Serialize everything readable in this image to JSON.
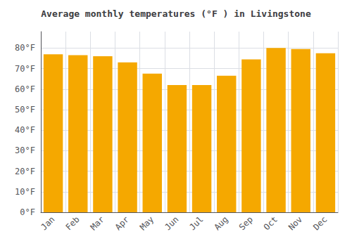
{
  "chart_data": {
    "type": "bar",
    "title": "Average monthly temperatures (°F ) in Livingstone",
    "categories": [
      "Jan",
      "Feb",
      "Mar",
      "Apr",
      "May",
      "Jun",
      "Jul",
      "Aug",
      "Sep",
      "Oct",
      "Nov",
      "Dec"
    ],
    "values": [
      77,
      76.5,
      76,
      73,
      67.5,
      62,
      62,
      66.5,
      74.5,
      80,
      79.5,
      77.5
    ],
    "color": "#F5A800",
    "ylim": [
      0,
      88
    ],
    "yticks": [
      {
        "value": 0,
        "label": "0°F"
      },
      {
        "value": 10,
        "label": "10°F"
      },
      {
        "value": 20,
        "label": "20°F"
      },
      {
        "value": 30,
        "label": "30°F"
      },
      {
        "value": 40,
        "label": "40°F"
      },
      {
        "value": 50,
        "label": "50°F"
      },
      {
        "value": 60,
        "label": "60°F"
      },
      {
        "value": 70,
        "label": "70°F"
      },
      {
        "value": 80,
        "label": "80°F"
      }
    ],
    "grid": true
  }
}
